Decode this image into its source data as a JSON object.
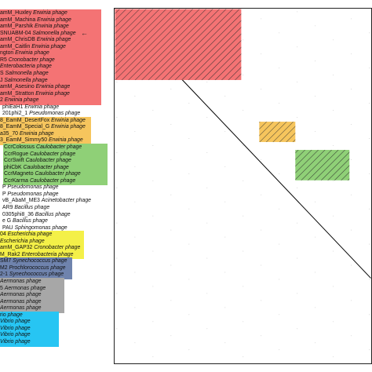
{
  "colors": {
    "red": "#f47374",
    "orange": "#f6c55d",
    "green": "#8fd077",
    "yellow": "#f4f048",
    "blue": "#6f83ad",
    "grey": "#a7a7a7",
    "cyan": "#27c5f3",
    "hatch": "#2b2b2b",
    "frame": "#222222",
    "dots": "#c8c8c8"
  },
  "marker": "←",
  "labels": [
    {
      "plain": "amM_Huxley ",
      "italic": "Erwinia phage",
      "group": "red"
    },
    {
      "plain": "amM_Machina ",
      "italic": "Erwinia phage",
      "group": "red"
    },
    {
      "plain": "amM_Parshik ",
      "italic": "Erwinia phage",
      "group": "red"
    },
    {
      "plain": "SNUABM-04 ",
      "italic": "Salmonella phage",
      "group": "red"
    },
    {
      "plain": "amM_ChrisDB ",
      "italic": "Erwinia phage",
      "group": "red"
    },
    {
      "plain": "amM_Caitlin ",
      "italic": "Erwinia phage",
      "group": "red"
    },
    {
      "plain": "ngton ",
      "italic": "Erwinia phage",
      "group": "red"
    },
    {
      "plain": "R5 ",
      "italic": "Cronobacter phage",
      "group": "red"
    },
    {
      "plain": "",
      "italic": "Enterobacteria phage",
      "group": "red"
    },
    {
      "plain": "S ",
      "italic": "Salmonella phage",
      "group": "red"
    },
    {
      "plain": "J ",
      "italic": "Salmonella phage",
      "group": "red"
    },
    {
      "plain": "amM_Asesino ",
      "italic": "Erwinia phage",
      "group": "red"
    },
    {
      "plain": "amM_Stratton ",
      "italic": "Erwinia phage",
      "group": "red"
    },
    {
      "plain": "2 ",
      "italic": "Erwinia phage",
      "group": "red"
    },
    {
      "plain": "phiEaH1 ",
      "italic": "Erwinia phage",
      "group": "none"
    },
    {
      "plain": "201phi2_1 ",
      "italic": "Pseudomonas phage",
      "group": "none"
    },
    {
      "plain": "8_EamM_DesertFox ",
      "italic": "Erwinia phage",
      "group": "orange"
    },
    {
      "plain": "8_EamM_Special_G ",
      "italic": "Erwinia phage",
      "group": "orange"
    },
    {
      "plain": "a35_70 ",
      "italic": "Erwinia phage",
      "group": "orange"
    },
    {
      "plain": "3_EamM_Simmy50 ",
      "italic": "Erwinia phage",
      "group": "orange"
    },
    {
      "plain": "CcrColossus ",
      "italic": "Caulobacter phage",
      "group": "green"
    },
    {
      "plain": "CcrRogue ",
      "italic": "Caulobacter phage",
      "group": "green"
    },
    {
      "plain": "CcrSwift ",
      "italic": "Caulobacter phage",
      "group": "green"
    },
    {
      "plain": "phiCbK ",
      "italic": "Caulobacter phage",
      "group": "green"
    },
    {
      "plain": "CcrMagneto ",
      "italic": "Caulobacter phage",
      "group": "green"
    },
    {
      "plain": "CcrKarma ",
      "italic": "Caulobacter phage",
      "group": "green"
    },
    {
      "plain": "P ",
      "italic": "Pseudomonas phage",
      "group": "none"
    },
    {
      "plain": "P ",
      "italic": "Pseudomonas phage",
      "group": "none"
    },
    {
      "plain": "vB_AbaM_ME3 ",
      "italic": "Acinetobacter phage",
      "group": "none"
    },
    {
      "plain": "AR9 ",
      "italic": "Bacillus phage",
      "group": "none"
    },
    {
      "plain": "0305phi8_36 ",
      "italic": "Bacillus phage",
      "group": "none"
    },
    {
      "plain": "e G ",
      "italic": "Bacillus phage",
      "group": "none"
    },
    {
      "plain": "PAU ",
      "italic": "Sphingomonas phage",
      "group": "none"
    },
    {
      "plain": "04 ",
      "italic": "Escherichia phage",
      "group": "yellow"
    },
    {
      "plain": "",
      "italic": "Escherichia phage",
      "group": "yellow"
    },
    {
      "plain": "amM_GAP32 ",
      "italic": "Cronobacter phage",
      "group": "yellow"
    },
    {
      "plain": "M_Rak2 ",
      "italic": "Enterobacteria phage",
      "group": "yellow"
    },
    {
      "plain": "SM7 ",
      "italic": "Synechococcus phage",
      "group": "blue"
    },
    {
      "plain": "M2 ",
      "italic": "Prochlorococcus phage",
      "group": "blue"
    },
    {
      "plain": "2-1 ",
      "italic": "Synechococcus phage",
      "group": "blue"
    },
    {
      "plain": "",
      "italic": "Aermonas phage",
      "group": "grey"
    },
    {
      "plain": "5 ",
      "italic": "Aermonas phage",
      "group": "grey"
    },
    {
      "plain": "",
      "italic": "Aermonas phage",
      "group": "grey"
    },
    {
      "plain": "",
      "italic": "Aermonas phage",
      "group": "grey"
    },
    {
      "plain": "",
      "italic": "Aermonas phage",
      "group": "grey"
    },
    {
      "plain": "rio ",
      "italic": "phage",
      "group": "cyan"
    },
    {
      "plain": "",
      "italic": "Vibrio phage",
      "group": "cyan"
    },
    {
      "plain": "",
      "italic": "Vibrio phage",
      "group": "cyan"
    },
    {
      "plain": "",
      "italic": "Vibrio phage",
      "group": "cyan"
    },
    {
      "plain": "",
      "italic": "Vibrio phage",
      "group": "cyan"
    }
  ],
  "boxes": [
    {
      "group": "red",
      "from": 0,
      "to": 13
    },
    {
      "group": "orange",
      "from": 16,
      "to": 19
    },
    {
      "group": "green",
      "from": 20,
      "to": 25
    },
    {
      "group": "yellow",
      "from": 33,
      "to": 36
    },
    {
      "group": "blue",
      "from": 37,
      "to": 39
    },
    {
      "group": "grey",
      "from": 40,
      "to": 44
    },
    {
      "group": "cyan",
      "from": 45,
      "to": 49
    }
  ],
  "matrix_blocks": [
    {
      "group": "red",
      "from": 0,
      "to": 13
    },
    {
      "group": "orange",
      "from": 16,
      "to": 19
    },
    {
      "group": "green",
      "from": 20,
      "to": 25
    },
    {
      "group": "yellow",
      "from": 33,
      "to": 36
    }
  ]
}
